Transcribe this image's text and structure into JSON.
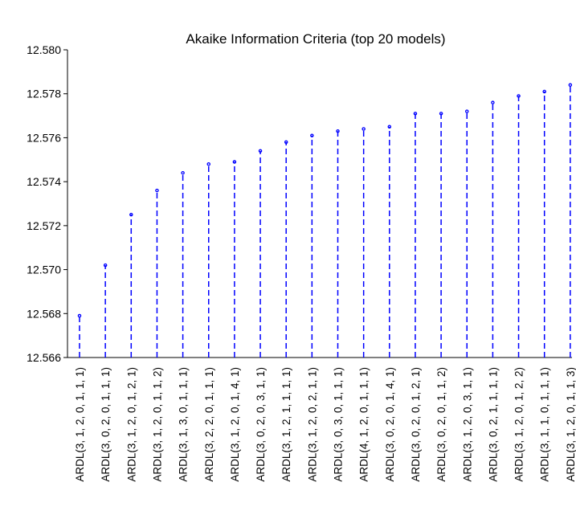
{
  "chart_data": {
    "type": "line",
    "style": "dashed-stem",
    "title": "Akaike Information Criteria (top 20 models)",
    "xlabel": "",
    "ylabel": "",
    "ylim": [
      12.566,
      12.58
    ],
    "yticks": [
      "12.566",
      "12.568",
      "12.570",
      "12.572",
      "12.574",
      "12.576",
      "12.578",
      "12.580"
    ],
    "grid": false,
    "legend": "none",
    "color": "#0000ff",
    "categories": [
      "ARDL(3, 1, 2, 0, 1, 1, 1)",
      "ARDL(3, 0, 2, 0, 1, 1, 1)",
      "ARDL(3, 1, 2, 0, 1, 2, 1)",
      "ARDL(3, 1, 2, 0, 1, 1, 2)",
      "ARDL(3, 1, 3, 0, 1, 1, 1)",
      "ARDL(3, 2, 2, 0, 1, 1, 1)",
      "ARDL(3, 1, 2, 0, 1, 4, 1)",
      "ARDL(3, 0, 2, 0, 3, 1, 1)",
      "ARDL(3, 1, 2, 1, 1, 1, 1)",
      "ARDL(3, 1, 2, 0, 2, 1, 1)",
      "ARDL(3, 0, 3, 0, 1, 1, 1)",
      "ARDL(4, 1, 2, 0, 1, 1, 1)",
      "ARDL(3, 0, 2, 0, 1, 4, 1)",
      "ARDL(3, 0, 2, 0, 1, 2, 1)",
      "ARDL(3, 0, 2, 0, 1, 1, 2)",
      "ARDL(3, 1, 2, 0, 3, 1, 1)",
      "ARDL(3, 0, 2, 1, 1, 1, 1)",
      "ARDL(3, 1, 2, 0, 1, 2, 2)",
      "ARDL(3, 1, 1, 0, 1, 1, 1)",
      "ARDL(3, 1, 2, 0, 1, 1, 3)"
    ],
    "values": [
      12.5679,
      12.5702,
      12.5725,
      12.5736,
      12.5744,
      12.5748,
      12.5749,
      12.5754,
      12.5758,
      12.5761,
      12.5763,
      12.5764,
      12.5765,
      12.5771,
      12.5771,
      12.5772,
      12.5776,
      12.5779,
      12.5781,
      12.5784
    ]
  }
}
